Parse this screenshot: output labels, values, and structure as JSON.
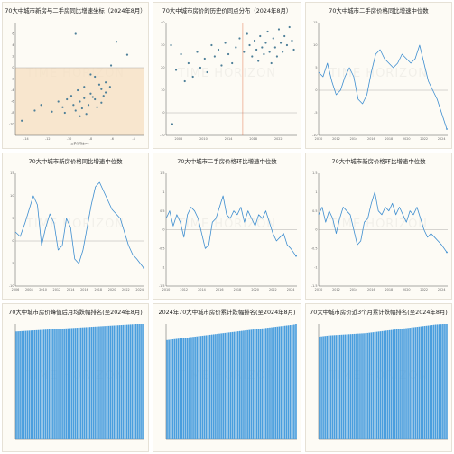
{
  "watermark": "TIME HORIZON",
  "panels": [
    {
      "id": "p1",
      "title": "70大中城市新房与二手房同比增速坐标（2024年8月）",
      "subtitle": "",
      "chart_data": {
        "type": "scatter",
        "xlabel": "二手房同比(%)",
        "ylabel": "",
        "xlim": [
          -15,
          -3
        ],
        "ylim": [
          -12,
          8
        ],
        "x_ticks": [
          -14,
          -12,
          -10,
          -8,
          -6,
          -4
        ],
        "y_ticks": [
          -10,
          -8,
          -6,
          -4,
          -2,
          0,
          2,
          4,
          6
        ],
        "shaded_region": {
          "x": [
            -15,
            -3
          ],
          "y": [
            -12,
            0
          ]
        },
        "points": [
          {
            "x": -9.4,
            "y": 6.0
          },
          {
            "x": -5.6,
            "y": 4.6
          },
          {
            "x": -4.6,
            "y": 2.3
          },
          {
            "x": -6.1,
            "y": 0.4
          },
          {
            "x": -7.6,
            "y": -1.6
          },
          {
            "x": -8.0,
            "y": -1.2
          },
          {
            "x": -6.6,
            "y": -2.6
          },
          {
            "x": -7.2,
            "y": -3.0
          },
          {
            "x": -8.6,
            "y": -3.4
          },
          {
            "x": -7.0,
            "y": -3.8
          },
          {
            "x": -9.2,
            "y": -4.0
          },
          {
            "x": -6.6,
            "y": -4.4
          },
          {
            "x": -8.0,
            "y": -4.6
          },
          {
            "x": -6.8,
            "y": -5.0
          },
          {
            "x": -9.8,
            "y": -5.0
          },
          {
            "x": -8.6,
            "y": -5.4
          },
          {
            "x": -10.2,
            "y": -5.6
          },
          {
            "x": -7.6,
            "y": -5.6
          },
          {
            "x": -9.0,
            "y": -6.0
          },
          {
            "x": -11.0,
            "y": -6.0
          },
          {
            "x": -7.0,
            "y": -6.2
          },
          {
            "x": -8.2,
            "y": -6.6
          },
          {
            "x": -9.6,
            "y": -6.6
          },
          {
            "x": -10.6,
            "y": -7.0
          },
          {
            "x": -12.6,
            "y": -6.6
          },
          {
            "x": -8.8,
            "y": -7.2
          },
          {
            "x": -7.4,
            "y": -7.0
          },
          {
            "x": -9.4,
            "y": -7.6
          },
          {
            "x": -11.6,
            "y": -7.8
          },
          {
            "x": -10.4,
            "y": -8.0
          },
          {
            "x": -8.4,
            "y": -8.2
          },
          {
            "x": -13.2,
            "y": -7.6
          },
          {
            "x": -9.0,
            "y": -8.6
          },
          {
            "x": -14.4,
            "y": -9.4
          },
          {
            "x": -7.8,
            "y": -5.2
          },
          {
            "x": -6.2,
            "y": -3.4
          }
        ]
      }
    },
    {
      "id": "p2",
      "title": "70大中城市房价的历史价同点分布（2024年8月）",
      "subtitle": "",
      "chart_data": {
        "type": "scatter",
        "xlabel": "",
        "ylabel": "",
        "xlim": [
          2004,
          2025
        ],
        "ylim": [
          -10,
          40
        ],
        "x_ticks": [
          2006,
          2010,
          2014,
          2018,
          2022
        ],
        "y_ticks": [
          -10,
          0,
          10,
          20,
          30,
          40
        ],
        "vline_x": 2016.3,
        "annotation": "",
        "points": [
          {
            "x": 2004.8,
            "y": 30
          },
          {
            "x": 2005.6,
            "y": 19
          },
          {
            "x": 2006.4,
            "y": 26
          },
          {
            "x": 2007.0,
            "y": 14
          },
          {
            "x": 2007.6,
            "y": 22
          },
          {
            "x": 2008.3,
            "y": 16
          },
          {
            "x": 2009.0,
            "y": 27
          },
          {
            "x": 2009.5,
            "y": 20
          },
          {
            "x": 2010.2,
            "y": 24
          },
          {
            "x": 2010.6,
            "y": 18
          },
          {
            "x": 2011.3,
            "y": 30
          },
          {
            "x": 2011.8,
            "y": 25
          },
          {
            "x": 2012.4,
            "y": 28
          },
          {
            "x": 2012.9,
            "y": 21
          },
          {
            "x": 2013.5,
            "y": 31
          },
          {
            "x": 2014.0,
            "y": 26
          },
          {
            "x": 2014.6,
            "y": 22
          },
          {
            "x": 2015.2,
            "y": 29
          },
          {
            "x": 2015.8,
            "y": 33
          },
          {
            "x": 2016.5,
            "y": 27
          },
          {
            "x": 2017.0,
            "y": 35
          },
          {
            "x": 2017.4,
            "y": 30
          },
          {
            "x": 2017.8,
            "y": 25
          },
          {
            "x": 2018.2,
            "y": 32
          },
          {
            "x": 2018.5,
            "y": 28
          },
          {
            "x": 2018.8,
            "y": 23
          },
          {
            "x": 2019.1,
            "y": 34
          },
          {
            "x": 2019.4,
            "y": 29
          },
          {
            "x": 2019.7,
            "y": 26
          },
          {
            "x": 2020.0,
            "y": 31
          },
          {
            "x": 2020.3,
            "y": 36
          },
          {
            "x": 2020.6,
            "y": 27
          },
          {
            "x": 2020.9,
            "y": 22
          },
          {
            "x": 2021.2,
            "y": 33
          },
          {
            "x": 2021.5,
            "y": 29
          },
          {
            "x": 2021.8,
            "y": 25
          },
          {
            "x": 2022.1,
            "y": 37
          },
          {
            "x": 2022.4,
            "y": 31
          },
          {
            "x": 2022.7,
            "y": 27
          },
          {
            "x": 2023.0,
            "y": 34
          },
          {
            "x": 2023.4,
            "y": 30
          },
          {
            "x": 2023.8,
            "y": 38
          },
          {
            "x": 2024.2,
            "y": 32
          },
          {
            "x": 2024.5,
            "y": 28
          },
          {
            "x": 2005.0,
            "y": -5
          }
        ]
      }
    },
    {
      "id": "p3",
      "title": "70大中城市二手房价格同比增速中位数",
      "subtitle": "",
      "chart_data": {
        "type": "line",
        "xlim": [
          2010,
          2024.7
        ],
        "ylim": [
          -10,
          15
        ],
        "y_ticks": [
          -10,
          -5,
          0,
          5,
          10,
          15
        ],
        "x_ticks": [
          2010,
          2012,
          2014,
          2016,
          2018,
          2020,
          2022,
          2024
        ],
        "peak_label": "",
        "end_label": "",
        "x": [
          2010.0,
          2010.5,
          2011.0,
          2011.5,
          2012.0,
          2012.5,
          2013.0,
          2013.5,
          2014.0,
          2014.5,
          2015.0,
          2015.5,
          2016.0,
          2016.5,
          2017.0,
          2017.5,
          2018.0,
          2018.5,
          2019.0,
          2019.5,
          2020.0,
          2020.5,
          2021.0,
          2021.5,
          2022.0,
          2022.5,
          2023.0,
          2023.5,
          2024.0,
          2024.6
        ],
        "y": [
          4,
          3,
          6,
          2,
          -1,
          0,
          3,
          5,
          3,
          -2,
          -3,
          -1,
          4,
          8,
          9,
          7,
          6,
          5,
          6,
          8,
          7,
          6,
          7,
          10,
          6,
          2,
          0,
          -2,
          -5,
          -8.6
        ]
      }
    },
    {
      "id": "p4",
      "title": "70大中城市新房价格同比增速中位数",
      "subtitle": "",
      "chart_data": {
        "type": "line",
        "xlim": [
          2006,
          2024.7
        ],
        "ylim": [
          -10,
          15
        ],
        "y_ticks": [
          -10,
          -5,
          0,
          5,
          10,
          15
        ],
        "x_ticks": [
          2006,
          2008,
          2010,
          2012,
          2014,
          2016,
          2018,
          2020,
          2022,
          2024
        ],
        "peak_label": "",
        "end_label": "",
        "x": [
          2006.0,
          2006.7,
          2007.4,
          2008.0,
          2008.6,
          2009.2,
          2009.8,
          2010.4,
          2011.0,
          2011.6,
          2012.2,
          2012.8,
          2013.4,
          2014.0,
          2014.6,
          2015.2,
          2015.8,
          2016.4,
          2017.0,
          2017.6,
          2018.2,
          2018.8,
          2019.4,
          2020.0,
          2020.6,
          2021.2,
          2021.8,
          2022.4,
          2023.0,
          2023.6,
          2024.6
        ],
        "y": [
          2,
          1,
          4,
          7,
          10,
          8,
          -1,
          3,
          6,
          4,
          -2,
          -1,
          5,
          3,
          -4,
          -5,
          -2,
          3,
          8,
          12,
          13,
          11,
          9,
          7,
          6,
          5,
          2,
          -1,
          -3,
          -4,
          -6
        ]
      }
    },
    {
      "id": "p5",
      "title": "70大中城市二手房价格环比增速中位数",
      "subtitle": "",
      "chart_data": {
        "type": "line",
        "xlim": [
          2010,
          2024.7
        ],
        "ylim": [
          -1.5,
          1.5
        ],
        "y_ticks": [
          -1.5,
          -1,
          -0.5,
          0,
          0.5,
          1,
          1.5
        ],
        "x_ticks": [
          2010,
          2012,
          2014,
          2016,
          2018,
          2020,
          2022,
          2024
        ],
        "peak_label": "",
        "end_label": "",
        "x": [
          2010.0,
          2010.4,
          2010.8,
          2011.2,
          2011.6,
          2012.0,
          2012.4,
          2012.8,
          2013.2,
          2013.6,
          2014.0,
          2014.4,
          2014.8,
          2015.2,
          2015.6,
          2016.0,
          2016.4,
          2016.8,
          2017.2,
          2017.6,
          2018.0,
          2018.4,
          2018.8,
          2019.2,
          2019.6,
          2020.0,
          2020.4,
          2020.8,
          2021.2,
          2021.6,
          2022.0,
          2022.4,
          2022.8,
          2023.2,
          2023.6,
          2024.0,
          2024.6
        ],
        "y": [
          0.3,
          0.5,
          0.1,
          0.4,
          0.2,
          -0.2,
          0.4,
          0.6,
          0.5,
          0.3,
          -0.1,
          -0.5,
          -0.4,
          0.2,
          0.3,
          0.6,
          0.9,
          0.4,
          0.3,
          0.5,
          0.4,
          0.6,
          0.2,
          0.5,
          0.3,
          0.1,
          0.4,
          0.3,
          0.5,
          0.2,
          -0.1,
          -0.3,
          -0.2,
          -0.1,
          -0.4,
          -0.5,
          -0.7
        ]
      }
    },
    {
      "id": "p6",
      "title": "70大中城市新房价格环比增速中位数",
      "subtitle": "",
      "chart_data": {
        "type": "line",
        "xlim": [
          2010,
          2024.7
        ],
        "ylim": [
          -1.5,
          1.5
        ],
        "y_ticks": [
          -1.5,
          -1,
          -0.5,
          0,
          0.5,
          1,
          1.5
        ],
        "x_ticks": [
          2010,
          2012,
          2014,
          2016,
          2018,
          2020,
          2022,
          2024
        ],
        "peak_label": "",
        "end_label": "",
        "x": [
          2010.0,
          2010.4,
          2010.8,
          2011.2,
          2011.6,
          2012.0,
          2012.4,
          2012.8,
          2013.2,
          2013.6,
          2014.0,
          2014.4,
          2014.8,
          2015.2,
          2015.6,
          2016.0,
          2016.4,
          2016.8,
          2017.2,
          2017.6,
          2018.0,
          2018.4,
          2018.8,
          2019.2,
          2019.6,
          2020.0,
          2020.4,
          2020.8,
          2021.2,
          2021.6,
          2022.0,
          2022.4,
          2022.8,
          2023.2,
          2023.6,
          2024.0,
          2024.6
        ],
        "y": [
          0.4,
          0.6,
          0.2,
          0.5,
          0.3,
          -0.1,
          0.3,
          0.6,
          0.5,
          0.4,
          0.0,
          -0.4,
          -0.3,
          0.2,
          0.3,
          0.7,
          1.0,
          0.5,
          0.4,
          0.6,
          0.5,
          0.7,
          0.4,
          0.6,
          0.4,
          0.2,
          0.5,
          0.4,
          0.6,
          0.3,
          0.0,
          -0.2,
          -0.1,
          -0.2,
          -0.3,
          -0.4,
          -0.6
        ]
      }
    },
    {
      "id": "p7",
      "title": "70大中城市房价峰值后月均跌幅排名(至2024年8月)",
      "subtitle": "",
      "chart_data": {
        "type": "bar",
        "count": 70,
        "ylim": [
          0,
          1
        ],
        "values": [
          0.935,
          0.936,
          0.937,
          0.938,
          0.939,
          0.94,
          0.941,
          0.942,
          0.943,
          0.944,
          0.945,
          0.946,
          0.947,
          0.948,
          0.949,
          0.95,
          0.951,
          0.952,
          0.953,
          0.954,
          0.955,
          0.956,
          0.957,
          0.958,
          0.959,
          0.96,
          0.961,
          0.962,
          0.963,
          0.964,
          0.965,
          0.966,
          0.967,
          0.968,
          0.969,
          0.97,
          0.971,
          0.972,
          0.973,
          0.974,
          0.975,
          0.976,
          0.977,
          0.978,
          0.979,
          0.98,
          0.981,
          0.982,
          0.983,
          0.984,
          0.985,
          0.986,
          0.987,
          0.988,
          0.989,
          0.99,
          0.991,
          0.992,
          0.993,
          0.994,
          0.995,
          0.996,
          0.997,
          0.998,
          0.999,
          1.0,
          1.0,
          1.0,
          1.0,
          1.0
        ]
      }
    },
    {
      "id": "p8",
      "title": "2024年70大中城市房价累计跌幅排名(至2024年8月)",
      "subtitle": "",
      "chart_data": {
        "type": "bar",
        "count": 70,
        "ylim": [
          0,
          1
        ],
        "values": [
          0.86,
          0.862,
          0.864,
          0.866,
          0.868,
          0.87,
          0.872,
          0.874,
          0.876,
          0.878,
          0.88,
          0.882,
          0.884,
          0.886,
          0.888,
          0.89,
          0.892,
          0.894,
          0.896,
          0.898,
          0.9,
          0.902,
          0.904,
          0.906,
          0.908,
          0.91,
          0.912,
          0.914,
          0.916,
          0.918,
          0.92,
          0.922,
          0.924,
          0.926,
          0.928,
          0.93,
          0.932,
          0.934,
          0.936,
          0.938,
          0.94,
          0.942,
          0.944,
          0.946,
          0.948,
          0.95,
          0.952,
          0.954,
          0.956,
          0.958,
          0.96,
          0.962,
          0.964,
          0.966,
          0.968,
          0.97,
          0.972,
          0.974,
          0.976,
          0.978,
          0.98,
          0.982,
          0.984,
          0.986,
          0.988,
          0.99,
          0.992,
          0.994,
          0.996,
          1.0
        ]
      }
    },
    {
      "id": "p9",
      "title": "70大中城市房价近3个月累计跌幅排名(至2024年8月)",
      "subtitle": "",
      "chart_data": {
        "type": "bar",
        "count": 70,
        "ylim": [
          0,
          1
        ],
        "values": [
          0.89,
          0.892,
          0.894,
          0.896,
          0.898,
          0.9,
          0.901,
          0.902,
          0.903,
          0.904,
          0.905,
          0.906,
          0.907,
          0.908,
          0.909,
          0.91,
          0.911,
          0.912,
          0.913,
          0.914,
          0.915,
          0.916,
          0.917,
          0.918,
          0.919,
          0.92,
          0.922,
          0.924,
          0.926,
          0.928,
          0.93,
          0.932,
          0.934,
          0.936,
          0.938,
          0.94,
          0.942,
          0.944,
          0.946,
          0.948,
          0.95,
          0.952,
          0.954,
          0.956,
          0.958,
          0.96,
          0.962,
          0.964,
          0.966,
          0.968,
          0.97,
          0.972,
          0.974,
          0.976,
          0.978,
          0.98,
          0.982,
          0.984,
          0.986,
          0.988,
          0.99,
          0.992,
          0.994,
          0.996,
          0.997,
          0.998,
          0.999,
          1.0,
          1.0,
          1.0
        ]
      }
    }
  ],
  "colors": {
    "line": "#3e8ed0",
    "bar": "#4a9ede",
    "point": "#4d7f98",
    "shade": "#f5dfc0",
    "vline": "#e05a2b",
    "zero": "#999999"
  }
}
